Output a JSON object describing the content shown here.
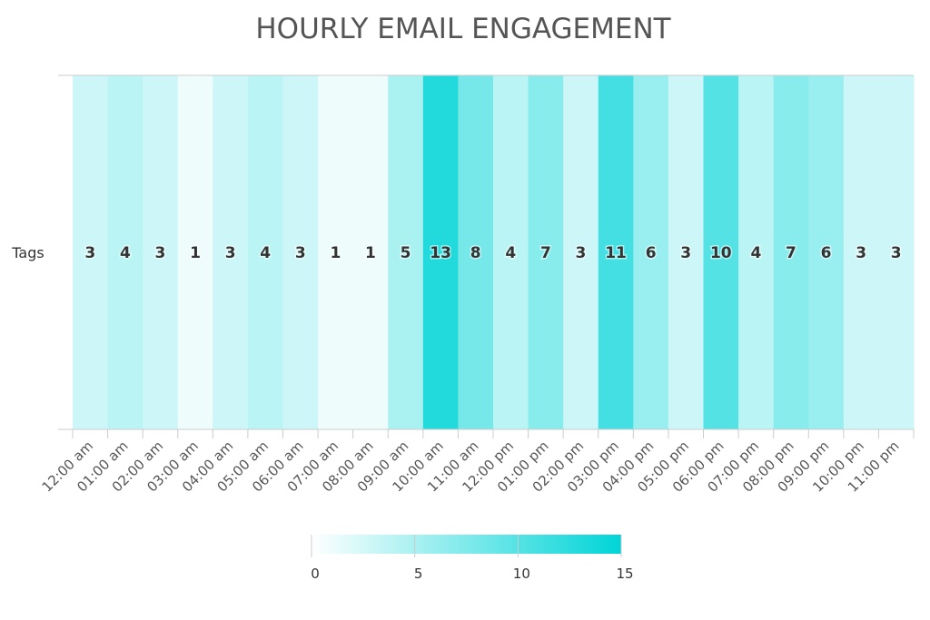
{
  "chart_data": {
    "type": "heatmap",
    "title": "HOURLY EMAIL ENGAGEMENT",
    "y_categories": [
      "Tags"
    ],
    "x_categories": [
      "12:00 am",
      "01:00 am",
      "02:00 am",
      "03:00 am",
      "04:00 am",
      "05:00 am",
      "06:00 am",
      "07:00 am",
      "08:00 am",
      "09:00 am",
      "10:00 am",
      "11:00 am",
      "12:00 pm",
      "01:00 pm",
      "02:00 pm",
      "03:00 pm",
      "04:00 pm",
      "05:00 pm",
      "06:00 pm",
      "07:00 pm",
      "08:00 pm",
      "09:00 pm",
      "10:00 pm",
      "11:00 pm"
    ],
    "values": [
      3,
      4,
      3,
      1,
      3,
      4,
      3,
      1,
      1,
      5,
      13,
      8,
      4,
      7,
      3,
      11,
      6,
      3,
      10,
      4,
      7,
      6,
      3,
      3
    ],
    "color_scale": {
      "min": 0,
      "max": 15,
      "min_color": "#ffffff",
      "max_color": "#00d4d7"
    },
    "legend": {
      "position": "bottom",
      "ticks": [
        0,
        5,
        10,
        15
      ]
    }
  }
}
